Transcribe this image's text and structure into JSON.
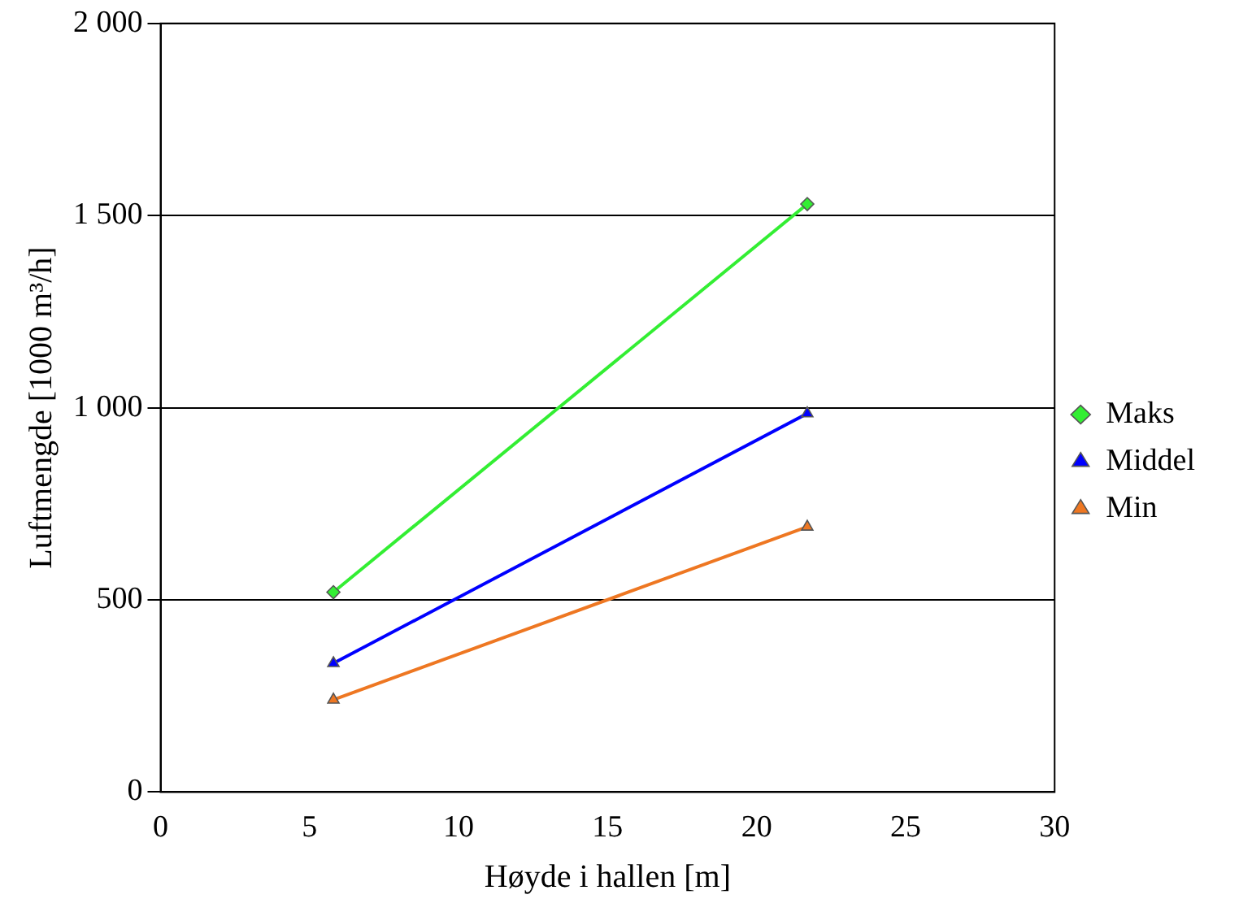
{
  "chart_data": {
    "type": "line",
    "xlabel": "Høyde i hallen [m]",
    "ylabel": "Luftmengde [1000 m³/h]",
    "xlim": [
      0,
      30
    ],
    "xticks": [
      0,
      5,
      10,
      15,
      20,
      25,
      30
    ],
    "ylim": [
      0,
      2000
    ],
    "yticks": [
      0,
      {
        "value": 500,
        "label": "500"
      },
      {
        "value": 1000,
        "label": "1 000"
      },
      {
        "value": 1500,
        "label": "1 500"
      },
      {
        "value": 2000,
        "label": "2 000"
      }
    ],
    "grid": "y",
    "legend": "right",
    "line_style": "solid",
    "x": [
      5.8,
      21.7
    ],
    "series": [
      {
        "name": "Maks",
        "color": "#33ee33",
        "marker": "diamond",
        "values": [
          520,
          1530
        ]
      },
      {
        "name": "Middel",
        "color": "#0000ff",
        "marker": "triangle",
        "values": [
          335,
          985
        ]
      },
      {
        "name": "Min",
        "color": "#ee7722",
        "marker": "triangle",
        "values": [
          240,
          690
        ]
      }
    ]
  }
}
